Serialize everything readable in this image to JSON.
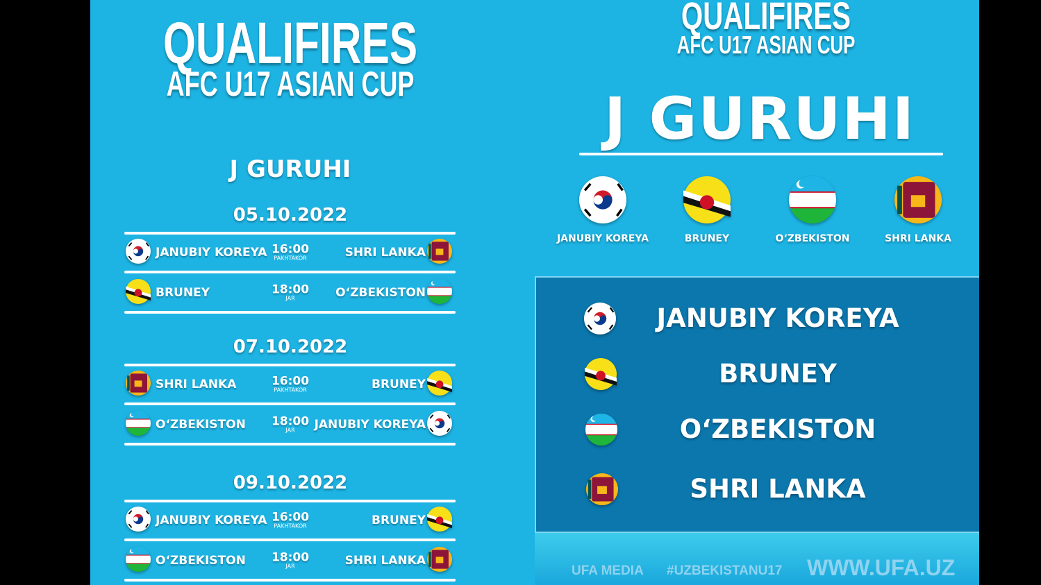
{
  "left": {
    "title": "QUALIFIRES",
    "subtitle": "AFC U17 ASIAN CUP",
    "group": "J GURUHI",
    "days": [
      {
        "date": "05.10.2022",
        "matches": [
          {
            "home": "JANUBIY KOREYA",
            "home_flag": "kr",
            "time": "16:00",
            "venue": "PAKHTAKOR",
            "away": "SHRI LANKA",
            "away_flag": "lk"
          },
          {
            "home": "BRUNEY",
            "home_flag": "bn",
            "time": "18:00",
            "venue": "JAR",
            "away": "O‘ZBEKISTON",
            "away_flag": "uz"
          }
        ]
      },
      {
        "date": "07.10.2022",
        "matches": [
          {
            "home": "SHRI LANKA",
            "home_flag": "lk",
            "time": "16:00",
            "venue": "PAKHTAKOR",
            "away": "BRUNEY",
            "away_flag": "bn"
          },
          {
            "home": "O‘ZBEKISTON",
            "home_flag": "uz",
            "time": "18:00",
            "venue": "JAR",
            "away": "JANUBIY KOREYA",
            "away_flag": "kr"
          }
        ]
      },
      {
        "date": "09.10.2022",
        "matches": [
          {
            "home": "JANUBIY KOREYA",
            "home_flag": "kr",
            "time": "16:00",
            "venue": "PAKHTAKOR",
            "away": "BRUNEY",
            "away_flag": "bn"
          },
          {
            "home": "O‘ZBEKISTON",
            "home_flag": "uz",
            "time": "18:00",
            "venue": "JAR",
            "away": "SHRI LANKA",
            "away_flag": "lk"
          }
        ]
      }
    ]
  },
  "right": {
    "title": "QUALIFIRES",
    "subtitle": "AFC U17 ASIAN CUP",
    "group": "J GURUHI",
    "teams": [
      {
        "name": "JANUBIY KOREYA",
        "flag": "kr"
      },
      {
        "name": "BRUNEY",
        "flag": "bn"
      },
      {
        "name": "O‘ZBEKISTON",
        "flag": "uz"
      },
      {
        "name": "SHRI LANKA",
        "flag": "lk"
      }
    ],
    "footer": {
      "brand": "UFA MEDIA",
      "hashtag": "#UZBEKISTANU17",
      "site": "WWW.UFA.UZ"
    }
  },
  "colors": {
    "background": "#1db4e4",
    "panel": "#0b77ad"
  }
}
